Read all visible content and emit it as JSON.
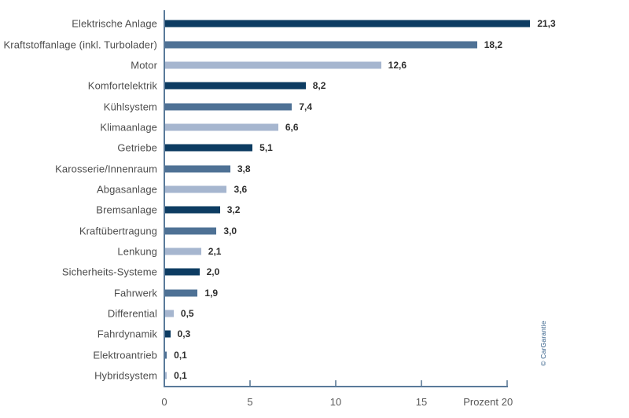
{
  "chart_data": {
    "type": "bar",
    "orientation": "horizontal",
    "title": "",
    "xlabel": "Prozent",
    "ylabel": "",
    "xlim": [
      0,
      20
    ],
    "grid": false,
    "legend": false,
    "categories": [
      "Elektrische Anlage",
      "Kraftstoffanlage (inkl. Turbolader)",
      "Motor",
      "Komfortelektrik",
      "Kühlsystem",
      "Klimaanlage",
      "Getriebe",
      "Karosserie/Innenraum",
      "Abgasanlage",
      "Bremsanlage",
      "Kraftübertragung",
      "Lenkung",
      "Sicherheits-Systeme",
      "Fahrwerk",
      "Differential",
      "Fahrdynamik",
      "Elektroantrieb",
      "Hybridsystem"
    ],
    "values": [
      21.3,
      18.2,
      12.6,
      8.2,
      7.4,
      6.6,
      5.1,
      3.8,
      3.6,
      3.2,
      3.0,
      2.1,
      2.0,
      1.9,
      0.5,
      0.3,
      0.1,
      0.1
    ],
    "rows": [
      {
        "label": "Elektrische Anlage",
        "value": 21.3,
        "display": "21,3"
      },
      {
        "label": "Kraftstoffanlage (inkl. Turbolader)",
        "value": 18.2,
        "display": "18,2"
      },
      {
        "label": "Motor",
        "value": 12.6,
        "display": "12,6"
      },
      {
        "label": "Komfortelektrik",
        "value": 8.2,
        "display": "8,2"
      },
      {
        "label": "Kühlsystem",
        "value": 7.4,
        "display": "7,4"
      },
      {
        "label": "Klimaanlage",
        "value": 6.6,
        "display": "6,6"
      },
      {
        "label": "Getriebe",
        "value": 5.1,
        "display": "5,1"
      },
      {
        "label": "Karosserie/Innenraum",
        "value": 3.8,
        "display": "3,8"
      },
      {
        "label": "Abgasanlage",
        "value": 3.6,
        "display": "3,6"
      },
      {
        "label": "Bremsanlage",
        "value": 3.2,
        "display": "3,2"
      },
      {
        "label": "Kraftübertragung",
        "value": 3.0,
        "display": "3,0"
      },
      {
        "label": "Lenkung",
        "value": 2.1,
        "display": "2,1"
      },
      {
        "label": "Sicherheits-Systeme",
        "value": 2.0,
        "display": "2,0"
      },
      {
        "label": "Fahrwerk",
        "value": 1.9,
        "display": "1,9"
      },
      {
        "label": "Differential",
        "value": 0.5,
        "display": "0,5"
      },
      {
        "label": "Fahrdynamik",
        "value": 0.3,
        "display": "0,3"
      },
      {
        "label": "Elektroantrieb",
        "value": 0.1,
        "display": "0,1"
      },
      {
        "label": "Hybridsystem",
        "value": 0.1,
        "display": "0,1"
      }
    ],
    "xticks": [
      {
        "value": 0,
        "label": "0"
      },
      {
        "value": 5,
        "label": "5"
      },
      {
        "value": 10,
        "label": "10"
      },
      {
        "value": 15,
        "label": "15"
      },
      {
        "value": 20,
        "label": "20"
      }
    ],
    "bar_palette": [
      "#0d3c62",
      "#4e7195",
      "#a6b6cf"
    ],
    "axis_color": "#5a7a9a",
    "credit": "© CarGarantie"
  }
}
